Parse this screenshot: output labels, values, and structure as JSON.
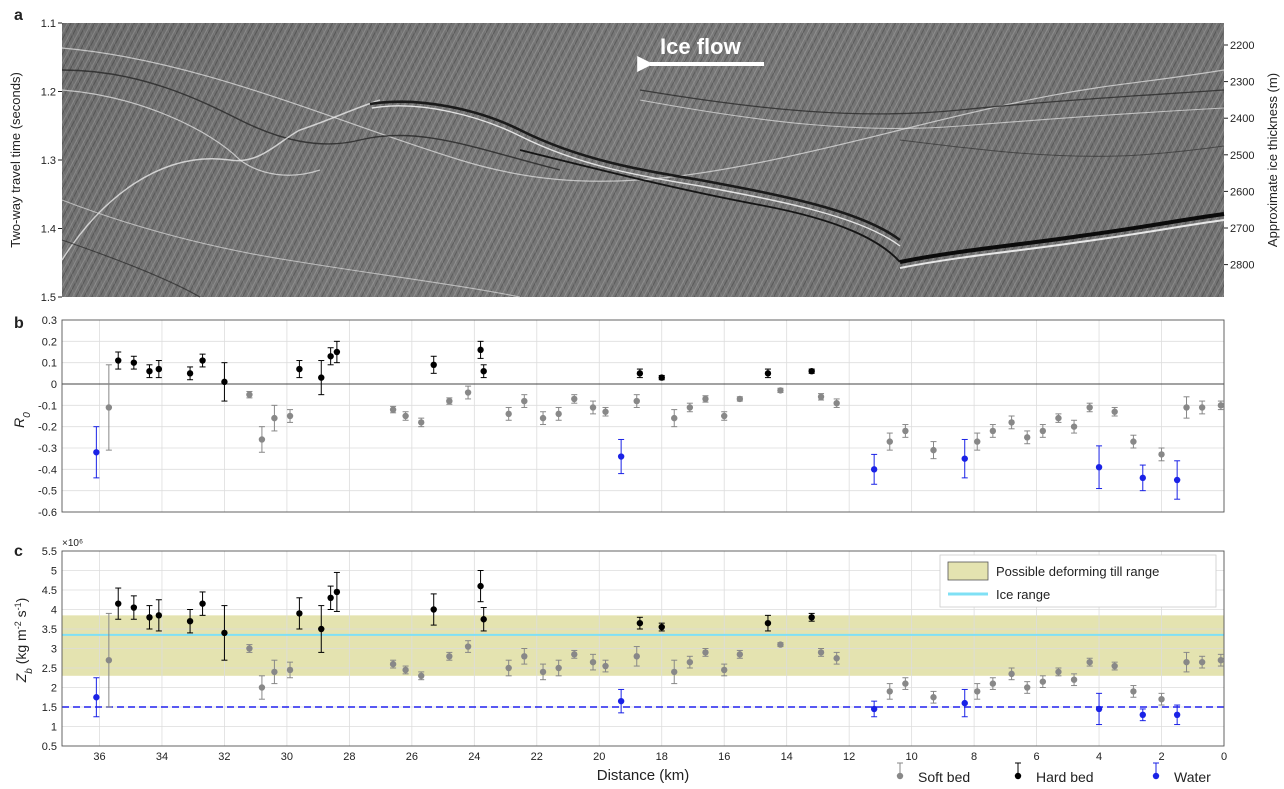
{
  "colors": {
    "soft": "#888888",
    "hard": "#000000",
    "water": "#1a22e6",
    "till_band": "#e4e3b0",
    "ice_line": "#7fe0f5",
    "water_line": "#2020ee",
    "grid": "#dddddd"
  },
  "panel_a": {
    "label": "a",
    "ylabel_left": "Two-way travel time (seconds)",
    "ylabel_right": "Approximate ice thickness (m)",
    "yticks_left": [
      "1.1",
      "1.2",
      "1.3",
      "1.4",
      "1.5"
    ],
    "yticks_right": [
      "2200",
      "2300",
      "2400",
      "2500",
      "2600",
      "2700",
      "2800"
    ],
    "arrow_label": "Ice flow"
  },
  "panel_b": {
    "label": "b",
    "ylabel": "R0"
  },
  "panel_c": {
    "label": "c",
    "ylabel": "Zb (kg m-2 s-1)",
    "exponent": "×10⁶"
  },
  "xlabel": "Distance (km)",
  "legend_top": {
    "till": "Possible deforming till range",
    "ice": "Ice range"
  },
  "legend_bottom": {
    "soft": "Soft bed",
    "hard": "Hard bed",
    "water": "Water"
  },
  "chart_data": [
    {
      "type": "scatter",
      "panel": "b",
      "ylabel": "R0",
      "xlim": [
        37.2,
        0
      ],
      "ylim": [
        -0.6,
        0.3
      ],
      "xticks": [
        36,
        34,
        32,
        30,
        28,
        26,
        24,
        22,
        20,
        18,
        16,
        14,
        12,
        10,
        8,
        6,
        4,
        2,
        0
      ],
      "yticks": [
        0.3,
        0.2,
        0.1,
        0,
        -0.1,
        -0.2,
        -0.3,
        -0.4,
        -0.5,
        -0.6
      ],
      "series": [
        {
          "name": "Soft bed",
          "points": [
            [
              35.7,
              -0.11,
              0.2
            ],
            [
              31.2,
              -0.05,
              0.015
            ],
            [
              30.8,
              -0.26,
              0.06
            ],
            [
              30.4,
              -0.16,
              0.06
            ],
            [
              29.9,
              -0.15,
              0.03
            ],
            [
              26.6,
              -0.12,
              0.015
            ],
            [
              26.2,
              -0.15,
              0.02
            ],
            [
              25.7,
              -0.18,
              0.02
            ],
            [
              24.8,
              -0.08,
              0.015
            ],
            [
              24.2,
              -0.04,
              0.03
            ],
            [
              22.9,
              -0.14,
              0.03
            ],
            [
              22.4,
              -0.08,
              0.03
            ],
            [
              21.8,
              -0.16,
              0.03
            ],
            [
              21.3,
              -0.14,
              0.03
            ],
            [
              20.8,
              -0.07,
              0.02
            ],
            [
              20.2,
              -0.11,
              0.03
            ],
            [
              19.8,
              -0.13,
              0.02
            ],
            [
              18.8,
              -0.08,
              0.03
            ],
            [
              17.6,
              -0.16,
              0.04
            ],
            [
              17.1,
              -0.11,
              0.02
            ],
            [
              16.6,
              -0.07,
              0.015
            ],
            [
              16.0,
              -0.15,
              0.02
            ],
            [
              15.5,
              -0.07,
              0.01
            ],
            [
              14.2,
              -0.03,
              0.01
            ],
            [
              12.9,
              -0.06,
              0.015
            ],
            [
              12.4,
              -0.09,
              0.02
            ],
            [
              10.7,
              -0.27,
              0.04
            ],
            [
              10.2,
              -0.22,
              0.03
            ],
            [
              9.3,
              -0.31,
              0.04
            ],
            [
              7.9,
              -0.27,
              0.04
            ],
            [
              7.4,
              -0.22,
              0.03
            ],
            [
              6.8,
              -0.18,
              0.03
            ],
            [
              6.3,
              -0.25,
              0.03
            ],
            [
              5.8,
              -0.22,
              0.03
            ],
            [
              5.3,
              -0.16,
              0.02
            ],
            [
              4.8,
              -0.2,
              0.03
            ],
            [
              4.3,
              -0.11,
              0.02
            ],
            [
              3.5,
              -0.13,
              0.02
            ],
            [
              2.9,
              -0.27,
              0.03
            ],
            [
              2.0,
              -0.33,
              0.03
            ],
            [
              1.2,
              -0.11,
              0.05
            ],
            [
              0.7,
              -0.11,
              0.03
            ],
            [
              0.1,
              -0.1,
              0.02
            ]
          ]
        },
        {
          "name": "Hard bed",
          "points": [
            [
              35.4,
              0.11,
              0.04
            ],
            [
              34.9,
              0.1,
              0.03
            ],
            [
              34.4,
              0.06,
              0.03
            ],
            [
              34.1,
              0.07,
              0.04
            ],
            [
              33.1,
              0.05,
              0.03
            ],
            [
              32.7,
              0.11,
              0.03
            ],
            [
              32.0,
              0.01,
              0.09
            ],
            [
              29.6,
              0.07,
              0.04
            ],
            [
              28.9,
              0.03,
              0.08
            ],
            [
              28.6,
              0.13,
              0.04
            ],
            [
              28.4,
              0.15,
              0.05
            ],
            [
              25.3,
              0.09,
              0.04
            ],
            [
              23.8,
              0.16,
              0.04
            ],
            [
              23.7,
              0.06,
              0.03
            ],
            [
              18.7,
              0.05,
              0.02
            ],
            [
              18.0,
              0.03,
              0.01
            ],
            [
              14.6,
              0.05,
              0.02
            ],
            [
              13.2,
              0.06,
              0.01
            ]
          ]
        },
        {
          "name": "Water",
          "points": [
            [
              36.1,
              -0.32,
              0.12
            ],
            [
              19.3,
              -0.34,
              0.08
            ],
            [
              11.2,
              -0.4,
              0.07
            ],
            [
              8.3,
              -0.35,
              0.09
            ],
            [
              4.0,
              -0.39,
              0.1
            ],
            [
              2.6,
              -0.44,
              0.06
            ],
            [
              1.5,
              -0.45,
              0.09
            ]
          ]
        }
      ]
    },
    {
      "type": "scatter",
      "panel": "c",
      "ylabel": "Zb (kg m-2 s-1)",
      "xlabel": "Distance (km)",
      "xlim": [
        37.2,
        0
      ],
      "ylim": [
        0.5,
        5.5
      ],
      "xticks": [
        36,
        34,
        32,
        30,
        28,
        26,
        24,
        22,
        20,
        18,
        16,
        14,
        12,
        10,
        8,
        6,
        4,
        2,
        0
      ],
      "yticks": [
        0.5,
        1,
        1.5,
        2,
        2.5,
        3,
        3.5,
        4,
        4.5,
        5,
        5.5
      ],
      "y_multiplier": 1000000,
      "till_range": [
        2.3,
        3.85
      ],
      "ice_range": 3.35,
      "water_line": 1.5,
      "series": [
        {
          "name": "Soft bed",
          "points": [
            [
              35.7,
              2.7,
              1.2
            ],
            [
              31.2,
              3.0,
              0.1
            ],
            [
              30.8,
              2.0,
              0.3
            ],
            [
              30.4,
              2.4,
              0.3
            ],
            [
              29.9,
              2.45,
              0.2
            ],
            [
              26.6,
              2.6,
              0.1
            ],
            [
              26.2,
              2.45,
              0.1
            ],
            [
              25.7,
              2.3,
              0.1
            ],
            [
              24.8,
              2.8,
              0.1
            ],
            [
              24.2,
              3.05,
              0.15
            ],
            [
              22.9,
              2.5,
              0.2
            ],
            [
              22.4,
              2.8,
              0.2
            ],
            [
              21.8,
              2.4,
              0.2
            ],
            [
              21.3,
              2.5,
              0.2
            ],
            [
              20.8,
              2.85,
              0.1
            ],
            [
              20.2,
              2.65,
              0.2
            ],
            [
              19.8,
              2.55,
              0.15
            ],
            [
              18.8,
              2.8,
              0.25
            ],
            [
              17.6,
              2.4,
              0.3
            ],
            [
              17.1,
              2.65,
              0.15
            ],
            [
              16.6,
              2.9,
              0.1
            ],
            [
              16.0,
              2.45,
              0.15
            ],
            [
              15.5,
              2.85,
              0.1
            ],
            [
              14.2,
              3.1,
              0.05
            ],
            [
              12.9,
              2.9,
              0.1
            ],
            [
              12.4,
              2.75,
              0.15
            ],
            [
              10.7,
              1.9,
              0.2
            ],
            [
              10.2,
              2.1,
              0.15
            ],
            [
              9.3,
              1.75,
              0.15
            ],
            [
              7.9,
              1.9,
              0.2
            ],
            [
              7.4,
              2.1,
              0.15
            ],
            [
              6.8,
              2.35,
              0.15
            ],
            [
              6.3,
              2.0,
              0.15
            ],
            [
              5.8,
              2.15,
              0.15
            ],
            [
              5.3,
              2.4,
              0.1
            ],
            [
              4.8,
              2.2,
              0.15
            ],
            [
              4.3,
              2.65,
              0.1
            ],
            [
              3.5,
              2.55,
              0.1
            ],
            [
              2.9,
              1.9,
              0.15
            ],
            [
              2.0,
              1.7,
              0.15
            ],
            [
              1.2,
              2.65,
              0.25
            ],
            [
              0.7,
              2.65,
              0.15
            ],
            [
              0.1,
              2.7,
              0.15
            ]
          ]
        },
        {
          "name": "Hard bed",
          "points": [
            [
              35.4,
              4.15,
              0.4
            ],
            [
              34.9,
              4.05,
              0.3
            ],
            [
              34.4,
              3.8,
              0.3
            ],
            [
              34.1,
              3.85,
              0.4
            ],
            [
              33.1,
              3.7,
              0.3
            ],
            [
              32.7,
              4.15,
              0.3
            ],
            [
              32.0,
              3.4,
              0.7
            ],
            [
              29.6,
              3.9,
              0.4
            ],
            [
              28.9,
              3.5,
              0.6
            ],
            [
              28.6,
              4.3,
              0.3
            ],
            [
              28.4,
              4.45,
              0.5
            ],
            [
              25.3,
              4.0,
              0.4
            ],
            [
              23.8,
              4.6,
              0.4
            ],
            [
              23.7,
              3.75,
              0.3
            ],
            [
              18.7,
              3.65,
              0.15
            ],
            [
              18.0,
              3.55,
              0.1
            ],
            [
              14.6,
              3.65,
              0.2
            ],
            [
              13.2,
              3.8,
              0.1
            ]
          ]
        },
        {
          "name": "Water",
          "points": [
            [
              36.1,
              1.75,
              0.5
            ],
            [
              19.3,
              1.65,
              0.3
            ],
            [
              11.2,
              1.45,
              0.2
            ],
            [
              8.3,
              1.6,
              0.35
            ],
            [
              4.0,
              1.45,
              0.4
            ],
            [
              2.6,
              1.3,
              0.15
            ],
            [
              1.5,
              1.3,
              0.25
            ]
          ]
        }
      ]
    }
  ]
}
